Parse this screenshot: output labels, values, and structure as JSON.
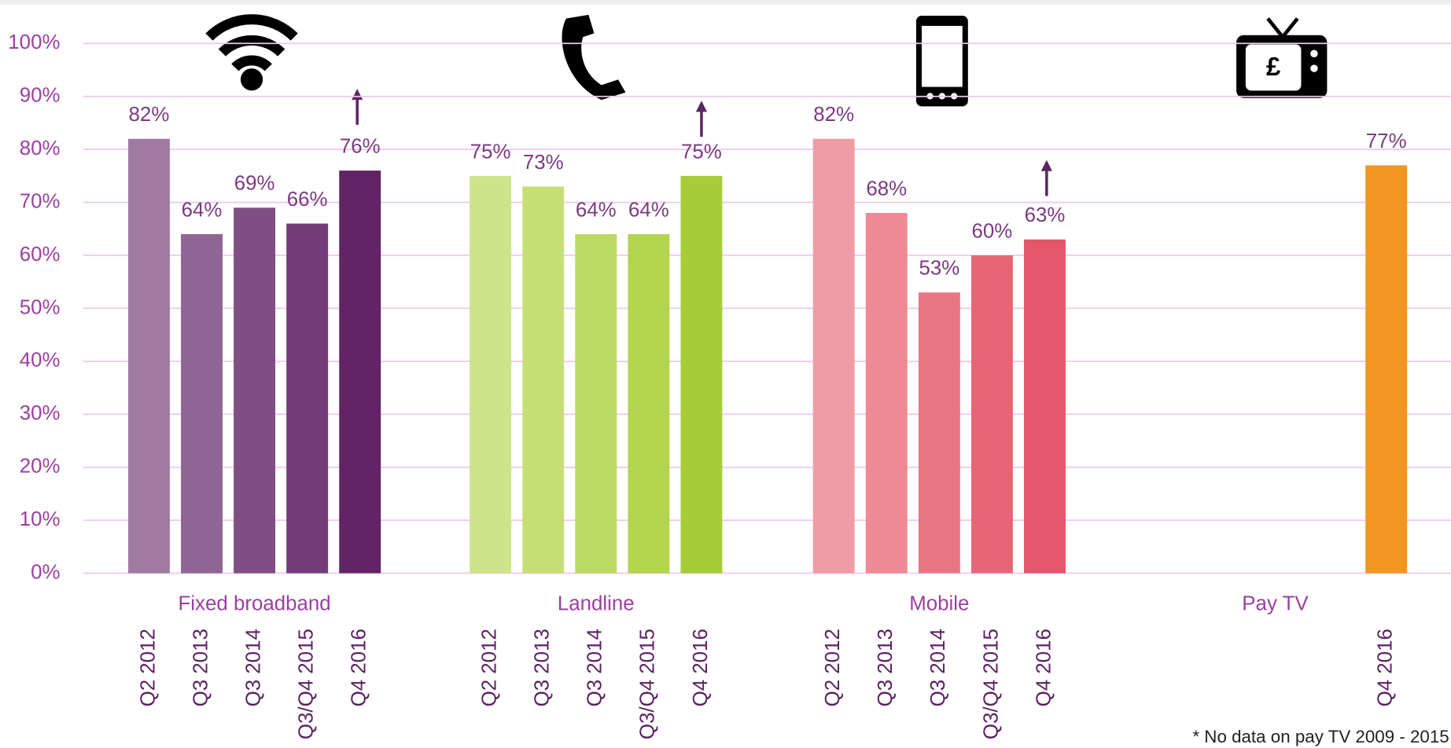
{
  "chart_data": {
    "type": "bar",
    "ylim": [
      0,
      100
    ],
    "yticks": [
      {
        "value": 0,
        "label": "0%"
      },
      {
        "value": 10,
        "label": "10%"
      },
      {
        "value": 20,
        "label": "20%"
      },
      {
        "value": 30,
        "label": "30%"
      },
      {
        "value": 40,
        "label": "40%"
      },
      {
        "value": 50,
        "label": "50%"
      },
      {
        "value": 60,
        "label": "60%"
      },
      {
        "value": 70,
        "label": "70%"
      },
      {
        "value": 80,
        "label": "80%"
      },
      {
        "value": 90,
        "label": "90%"
      },
      {
        "value": 100,
        "label": "100%"
      }
    ],
    "grid": true,
    "groups": [
      {
        "name": "Fixed broadband",
        "categories": [
          "Q2 2012",
          "Q3 2013",
          "Q3 2014",
          "Q3/Q4 2015",
          "Q4 2016"
        ],
        "values": [
          82,
          64,
          69,
          66,
          76
        ],
        "value_labels": [
          "82%",
          "64%",
          "69%",
          "66%",
          "76%"
        ],
        "colors": [
          "#a07aa3",
          "#8f6594",
          "#7f4f84",
          "#713c77",
          "#622466"
        ]
      },
      {
        "name": "Landline",
        "categories": [
          "Q2 2012",
          "Q3 2013",
          "Q3 2014",
          "Q3/Q4 2015",
          "Q4 2016"
        ],
        "values": [
          75,
          73,
          64,
          64,
          75
        ],
        "value_labels": [
          "75%",
          "73%",
          "64%",
          "64%",
          "75%"
        ],
        "colors": [
          "#cde48a",
          "#c5df76",
          "#bbd962",
          "#b2d44f",
          "#a6cc3a"
        ]
      },
      {
        "name": "Mobile",
        "categories": [
          "Q2 2012",
          "Q3 2013",
          "Q3 2014",
          "Q3/Q4 2015",
          "Q4 2016"
        ],
        "values": [
          82,
          68,
          53,
          60,
          63
        ],
        "value_labels": [
          "82%",
          "68%",
          "53%",
          "60%",
          "63%"
        ],
        "colors": [
          "#f09ca4",
          "#ed8a94",
          "#ea7683",
          "#e76676",
          "#e5566a"
        ]
      },
      {
        "name": "Pay TV",
        "categories": [
          "Q4 2016"
        ],
        "values": [
          77
        ],
        "value_labels": [
          "77%"
        ],
        "colors": [
          "#f39523"
        ]
      }
    ],
    "footnote": "* No data on pay TV 2009 - 2015"
  }
}
